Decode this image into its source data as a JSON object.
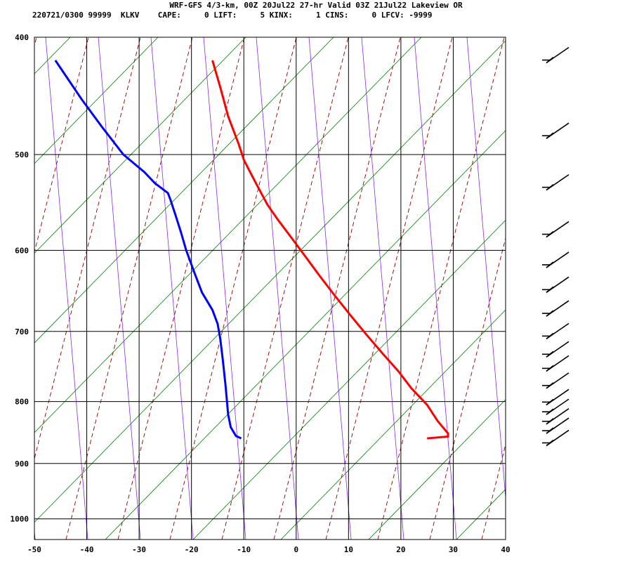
{
  "header": {
    "title": "WRF-GFS 4/3-km, 00Z 20Jul22 27-hr Valid 03Z 21Jul22 Lakeview OR",
    "indices": "220721/0300 99999  KLKV    CAPE:     0 LIFT:     5 KINX:     1 CINS:     0 LFCV: -9999"
  },
  "chart_data": {
    "type": "line",
    "title": "WRF-GFS 4/3-km, 00Z 20Jul22 27-hr Valid 03Z 21Jul22 Lakeview OR",
    "xlabel": "",
    "ylabel": "",
    "x_ticks": [
      -50,
      -40,
      -30,
      -20,
      -10,
      0,
      10,
      20,
      30,
      40
    ],
    "y_ticks": [
      400,
      500,
      600,
      700,
      800,
      900,
      1000
    ],
    "xlim": [
      -50,
      40
    ],
    "ylim_pressure": [
      1040,
      400
    ],
    "y_scale": "log-pressure",
    "grid": true,
    "series": [
      {
        "name": "",
        "color": "#ff0000",
        "points": [
          [
            -16,
            418
          ],
          [
            -14.5,
            440
          ],
          [
            -13,
            465
          ],
          [
            -11,
            490
          ],
          [
            -10,
            505
          ],
          [
            -9,
            515
          ],
          [
            -7.5,
            530
          ],
          [
            -5.5,
            550
          ],
          [
            -3.5,
            566
          ],
          [
            -1,
            585
          ],
          [
            1.5,
            605
          ],
          [
            4.5,
            630
          ],
          [
            7.5,
            655
          ],
          [
            10.5,
            680
          ],
          [
            13.5,
            705
          ],
          [
            16.5,
            730
          ],
          [
            19.5,
            755
          ],
          [
            22,
            780
          ],
          [
            25,
            805
          ],
          [
            27,
            830
          ],
          [
            29,
            850
          ],
          [
            29,
            855
          ],
          [
            25,
            858
          ]
        ]
      },
      {
        "name": "",
        "color": "#0000ff",
        "points": [
          [
            -46,
            418
          ],
          [
            -41,
            450
          ],
          [
            -37,
            475
          ],
          [
            -33,
            500
          ],
          [
            -29,
            517
          ],
          [
            -27,
            528
          ],
          [
            -24.5,
            538
          ],
          [
            -24,
            545
          ],
          [
            -23,
            562
          ],
          [
            -22,
            580
          ],
          [
            -21,
            600
          ],
          [
            -19.5,
            625
          ],
          [
            -18,
            650
          ],
          [
            -16,
            672
          ],
          [
            -15,
            690
          ],
          [
            -14.5,
            710
          ],
          [
            -14,
            740
          ],
          [
            -13.5,
            775
          ],
          [
            -13,
            820
          ],
          [
            -12.5,
            840
          ],
          [
            -11.5,
            854
          ],
          [
            -10.5,
            858
          ]
        ]
      }
    ],
    "wind_barbs_pressure": [
      420,
      485,
      535,
      585,
      620,
      650,
      680,
      710,
      735,
      755,
      780,
      805,
      820,
      835,
      850,
      870
    ]
  }
}
